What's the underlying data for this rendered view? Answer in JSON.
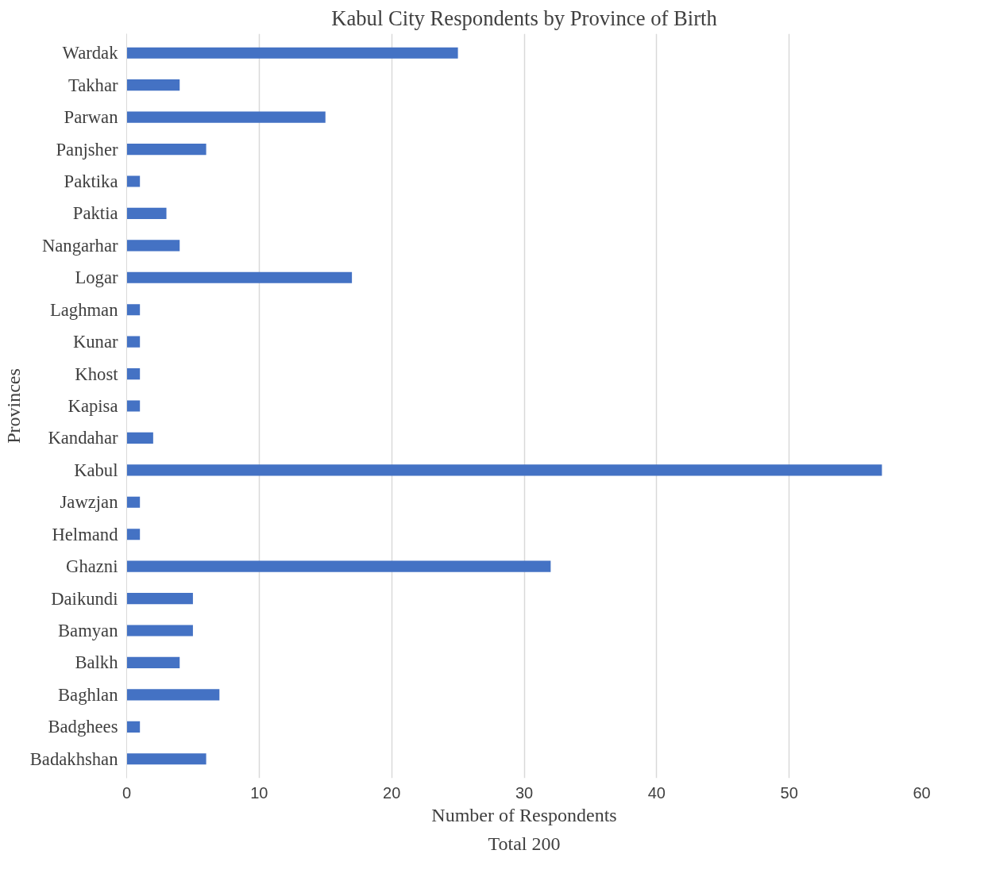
{
  "chart_data": {
    "type": "bar",
    "orientation": "horizontal",
    "title": "Kabul City Respondents by Province of Birth",
    "xlabel": "Number of Respondents",
    "ylabel": "Provinces",
    "annotations": [
      "Total 200"
    ],
    "categories": [
      "Wardak",
      "Takhar",
      "Parwan",
      "Panjsher",
      "Paktika",
      "Paktia",
      "Nangarhar",
      "Logar",
      "Laghman",
      "Kunar",
      "Khost",
      "Kapisa",
      "Kandahar",
      "Kabul",
      "Jawzjan",
      "Helmand",
      "Ghazni",
      "Daikundi",
      "Bamyan",
      "Balkh",
      "Baghlan",
      "Badghees",
      "Badakhshan"
    ],
    "values": [
      25,
      4,
      15,
      6,
      1,
      3,
      4,
      17,
      1,
      1,
      1,
      1,
      2,
      57,
      1,
      1,
      32,
      5,
      5,
      4,
      7,
      1,
      6
    ],
    "color": "#4472c4",
    "xlim": [
      0,
      60
    ],
    "xticks": [
      0,
      10,
      20,
      30,
      40,
      50,
      60
    ],
    "grid": "x"
  }
}
